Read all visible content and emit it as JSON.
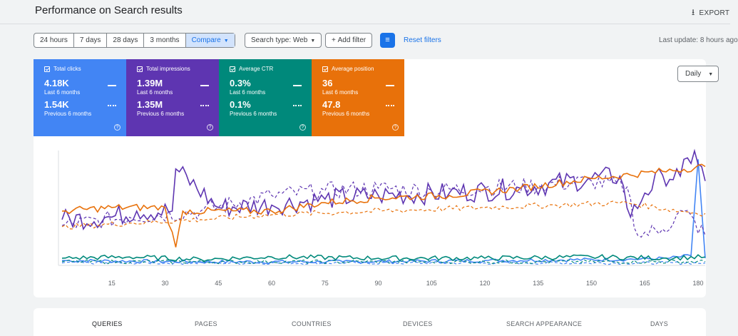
{
  "header": {
    "title": "Performance on Search results",
    "export_label": "EXPORT"
  },
  "toolbar": {
    "ranges": [
      "24 hours",
      "7 days",
      "28 days",
      "3 months",
      "Compare"
    ],
    "search_type": "Search type: Web",
    "add_filter": "Add filter",
    "reset_filters": "Reset filters",
    "last_update": "Last update: 8 hours ago"
  },
  "metrics": [
    {
      "label": "Total clicks",
      "current": "4.18K",
      "current_label": "Last 6 months",
      "previous": "1.54K",
      "previous_label": "Previous 6 months",
      "color": "#4285f4"
    },
    {
      "label": "Total impressions",
      "current": "1.39M",
      "current_label": "Last 6 months",
      "previous": "1.35M",
      "previous_label": "Previous 6 months",
      "color": "#5e35b1"
    },
    {
      "label": "Average CTR",
      "current": "0.3%",
      "current_label": "Last 6 months",
      "previous": "0.1%",
      "previous_label": "Previous 6 months",
      "color": "#00897b"
    },
    {
      "label": "Average position",
      "current": "36",
      "current_label": "Last 6 months",
      "previous": "47.8",
      "previous_label": "Previous 6 months",
      "color": "#e8710a"
    }
  ],
  "granularity": "Daily",
  "chart_data": {
    "type": "line",
    "x_ticks": [
      15,
      30,
      45,
      60,
      75,
      90,
      105,
      120,
      135,
      150,
      165,
      180
    ],
    "x_range": [
      1,
      182
    ],
    "y_range": [
      0,
      100
    ],
    "series": [
      {
        "name": "Total clicks",
        "style": "solid",
        "color": "#4285f4",
        "anchors": [
          [
            1,
            4
          ],
          [
            40,
            3
          ],
          [
            80,
            3
          ],
          [
            120,
            4
          ],
          [
            160,
            5
          ],
          [
            172,
            6
          ],
          [
            178,
            8
          ],
          [
            180,
            88
          ],
          [
            182,
            6
          ]
        ]
      },
      {
        "name": "Total clicks",
        "style": "dashed",
        "color": "#4285f4",
        "anchors": [
          [
            1,
            2
          ],
          [
            60,
            2
          ],
          [
            120,
            2
          ],
          [
            182,
            2
          ]
        ]
      },
      {
        "name": "Total impressions",
        "style": "solid",
        "color": "#5e35b1",
        "anchors": [
          [
            1,
            38
          ],
          [
            15,
            40
          ],
          [
            22,
            45
          ],
          [
            32,
            45
          ],
          [
            33,
            80
          ],
          [
            45,
            48
          ],
          [
            60,
            50
          ],
          [
            75,
            55
          ],
          [
            90,
            58
          ],
          [
            110,
            60
          ],
          [
            130,
            64
          ],
          [
            150,
            72
          ],
          [
            158,
            74
          ],
          [
            161,
            40
          ],
          [
            165,
            60
          ],
          [
            170,
            75
          ],
          [
            175,
            74
          ],
          [
            179,
            95
          ],
          [
            182,
            70
          ]
        ]
      },
      {
        "name": "Total impressions",
        "style": "dashed",
        "color": "#5e35b1",
        "anchors": [
          [
            1,
            33
          ],
          [
            20,
            40
          ],
          [
            40,
            45
          ],
          [
            60,
            58
          ],
          [
            75,
            62
          ],
          [
            90,
            64
          ],
          [
            105,
            62
          ],
          [
            120,
            64
          ],
          [
            135,
            66
          ],
          [
            150,
            70
          ],
          [
            160,
            65
          ],
          [
            163,
            25
          ],
          [
            170,
            30
          ],
          [
            176,
            45
          ],
          [
            182,
            25
          ]
        ]
      },
      {
        "name": "Average CTR",
        "style": "solid",
        "color": "#00897b",
        "anchors": [
          [
            1,
            6
          ],
          [
            20,
            7
          ],
          [
            40,
            5
          ],
          [
            60,
            7
          ],
          [
            90,
            6
          ],
          [
            120,
            6
          ],
          [
            150,
            7
          ],
          [
            170,
            6
          ],
          [
            182,
            7
          ]
        ]
      },
      {
        "name": "Average CTR",
        "style": "dashed",
        "color": "#00897b",
        "anchors": [
          [
            1,
            3
          ],
          [
            60,
            3
          ],
          [
            120,
            3
          ],
          [
            182,
            3
          ]
        ]
      },
      {
        "name": "Average position",
        "style": "solid",
        "color": "#e8710a",
        "anchors": [
          [
            1,
            45
          ],
          [
            15,
            48
          ],
          [
            30,
            48
          ],
          [
            33,
            15
          ],
          [
            35,
            45
          ],
          [
            60,
            45
          ],
          [
            75,
            52
          ],
          [
            90,
            56
          ],
          [
            110,
            58
          ],
          [
            130,
            64
          ],
          [
            150,
            72
          ],
          [
            170,
            78
          ],
          [
            182,
            82
          ]
        ]
      },
      {
        "name": "Average position",
        "style": "dashed",
        "color": "#e8710a",
        "anchors": [
          [
            1,
            32
          ],
          [
            20,
            35
          ],
          [
            40,
            38
          ],
          [
            60,
            42
          ],
          [
            80,
            44
          ],
          [
            100,
            46
          ],
          [
            120,
            48
          ],
          [
            140,
            50
          ],
          [
            160,
            52
          ],
          [
            175,
            45
          ],
          [
            182,
            43
          ]
        ]
      }
    ]
  },
  "tabs": [
    "QUERIES",
    "PAGES",
    "COUNTRIES",
    "DEVICES",
    "SEARCH APPEARANCE",
    "DAYS"
  ]
}
